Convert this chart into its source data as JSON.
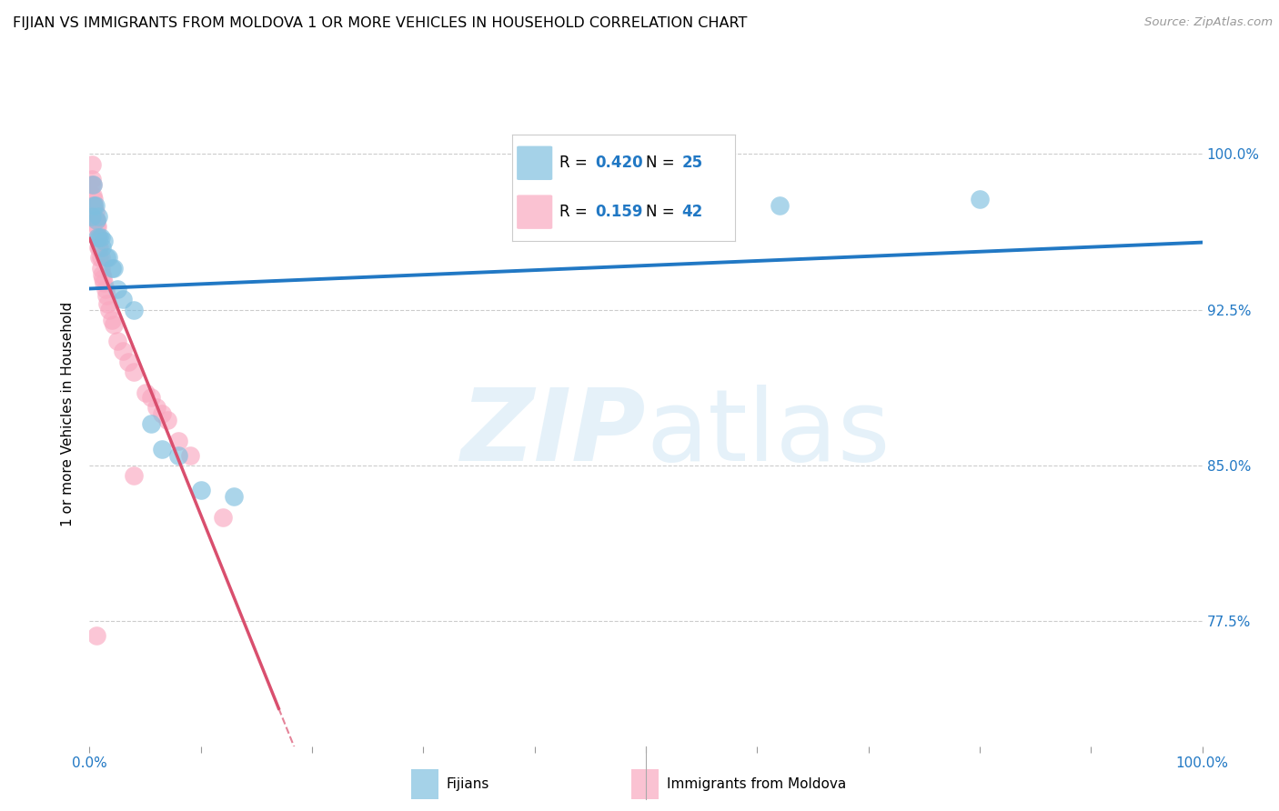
{
  "title": "FIJIAN VS IMMIGRANTS FROM MOLDOVA 1 OR MORE VEHICLES IN HOUSEHOLD CORRELATION CHART",
  "source": "Source: ZipAtlas.com",
  "ylabel": "1 or more Vehicles in Household",
  "ytick_labels": [
    "100.0%",
    "92.5%",
    "85.0%",
    "77.5%"
  ],
  "ytick_values": [
    1.0,
    0.925,
    0.85,
    0.775
  ],
  "xlim": [
    0.0,
    1.0
  ],
  "ylim": [
    0.715,
    1.035
  ],
  "fijian_R": 0.42,
  "fijian_N": 25,
  "moldova_R": 0.159,
  "moldova_N": 42,
  "fijian_color": "#7fbfdf",
  "moldova_color": "#f9a8c0",
  "trend_fijian_color": "#2178c4",
  "trend_moldova_color": "#d94f6e",
  "fijian_x": [
    0.002,
    0.003,
    0.004,
    0.005,
    0.006,
    0.007,
    0.008,
    0.009,
    0.01,
    0.011,
    0.013,
    0.015,
    0.017,
    0.02,
    0.022,
    0.025,
    0.03,
    0.04,
    0.055,
    0.065,
    0.08,
    0.1,
    0.13,
    0.62,
    0.8
  ],
  "fijian_y": [
    0.97,
    0.985,
    0.975,
    0.975,
    0.968,
    0.96,
    0.97,
    0.96,
    0.96,
    0.955,
    0.958,
    0.95,
    0.95,
    0.945,
    0.945,
    0.935,
    0.93,
    0.925,
    0.87,
    0.858,
    0.855,
    0.838,
    0.835,
    0.975,
    0.978
  ],
  "moldova_x": [
    0.001,
    0.002,
    0.002,
    0.003,
    0.003,
    0.004,
    0.004,
    0.005,
    0.005,
    0.006,
    0.006,
    0.007,
    0.007,
    0.008,
    0.008,
    0.009,
    0.009,
    0.01,
    0.01,
    0.011,
    0.012,
    0.013,
    0.014,
    0.015,
    0.016,
    0.018,
    0.02,
    0.022,
    0.025,
    0.03,
    0.035,
    0.04,
    0.05,
    0.055,
    0.06,
    0.065,
    0.07,
    0.08,
    0.09,
    0.12,
    0.04,
    0.006
  ],
  "moldova_y": [
    0.985,
    0.995,
    0.988,
    0.985,
    0.98,
    0.978,
    0.975,
    0.972,
    0.968,
    0.968,
    0.965,
    0.965,
    0.96,
    0.96,
    0.955,
    0.955,
    0.95,
    0.95,
    0.945,
    0.942,
    0.94,
    0.938,
    0.935,
    0.932,
    0.928,
    0.925,
    0.92,
    0.918,
    0.91,
    0.905,
    0.9,
    0.895,
    0.885,
    0.883,
    0.878,
    0.875,
    0.872,
    0.862,
    0.855,
    0.825,
    0.845,
    0.768
  ],
  "legend_R_fijian": "0.420",
  "legend_N_fijian": "25",
  "legend_R_moldova": "0.159",
  "legend_N_moldova": "42"
}
